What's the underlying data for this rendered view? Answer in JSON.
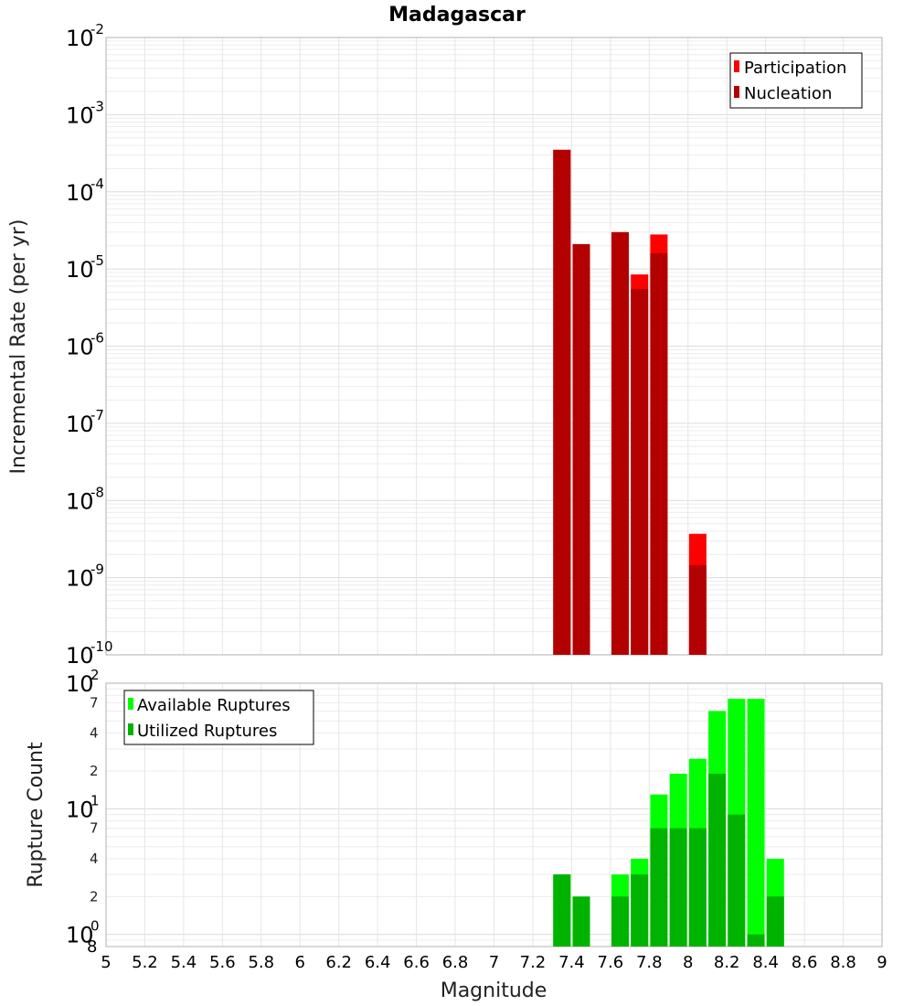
{
  "chart_data": [
    {
      "type": "bar",
      "title": "Madagascar",
      "xlabel": "",
      "ylabel": "Incremental Rate (per yr)",
      "xlim": [
        5,
        9
      ],
      "ylim": [
        1e-10,
        0.01
      ],
      "yscale": "log",
      "grid": true,
      "legend_position": "top-right",
      "y_ticks": [
        {
          "base": "10",
          "exp": "-10",
          "value": 1e-10
        },
        {
          "base": "10",
          "exp": "-9",
          "value": 1e-09
        },
        {
          "base": "10",
          "exp": "-8",
          "value": 1e-08
        },
        {
          "base": "10",
          "exp": "-7",
          "value": 1e-07
        },
        {
          "base": "10",
          "exp": "-6",
          "value": 1e-06
        },
        {
          "base": "10",
          "exp": "-5",
          "value": 1e-05
        },
        {
          "base": "10",
          "exp": "-4",
          "value": 0.0001
        },
        {
          "base": "10",
          "exp": "-3",
          "value": 0.001
        },
        {
          "base": "10",
          "exp": "-2",
          "value": 0.01
        }
      ],
      "series": [
        {
          "name": "Participation",
          "color": "#ff0000",
          "x": [
            7.35,
            7.45,
            7.65,
            7.75,
            7.85,
            8.05
          ],
          "values": [
            0.00035,
            2.1e-05,
            3e-05,
            8.5e-06,
            2.8e-05,
            3.7e-09
          ]
        },
        {
          "name": "Nucleation",
          "color": "#b30000",
          "x": [
            7.35,
            7.45,
            7.65,
            7.75,
            7.85,
            8.05
          ],
          "values": [
            0.00035,
            2.1e-05,
            3e-05,
            5.5e-06,
            1.6e-05,
            1.45e-09
          ]
        }
      ]
    },
    {
      "type": "bar",
      "title": "",
      "xlabel": "Magnitude",
      "ylabel": "Rupture Count",
      "xlim": [
        5,
        9
      ],
      "ylim": [
        0.8,
        100
      ],
      "yscale": "log",
      "grid": true,
      "legend_position": "top-left",
      "x_ticks": [
        "5",
        "5.2",
        "5.4",
        "5.6",
        "5.8",
        "6",
        "6.2",
        "6.4",
        "6.6",
        "6.8",
        "7",
        "7.2",
        "7.4",
        "7.6",
        "7.8",
        "8",
        "8.2",
        "8.4",
        "8.6",
        "8.8",
        "9"
      ],
      "y_ticks": [
        {
          "base": "10",
          "exp": "0",
          "value": 1
        },
        {
          "base": "10",
          "exp": "1",
          "value": 10
        },
        {
          "base": "10",
          "exp": "2",
          "value": 100
        }
      ],
      "y_minor_ticks": [
        {
          "label": "8",
          "value": 0.8
        },
        {
          "label": "2",
          "value": 2
        },
        {
          "label": "4",
          "value": 4
        },
        {
          "label": "7",
          "value": 7
        },
        {
          "label": "2",
          "value": 20
        },
        {
          "label": "4",
          "value": 40
        },
        {
          "label": "7",
          "value": 70
        }
      ],
      "series": [
        {
          "name": "Available Ruptures",
          "color": "#00ff00",
          "x": [
            7.35,
            7.45,
            7.65,
            7.75,
            7.85,
            7.95,
            8.05,
            8.15,
            8.25,
            8.35,
            8.45
          ],
          "values": [
            3,
            2,
            3,
            4,
            13,
            19,
            25,
            60,
            75,
            75,
            4
          ]
        },
        {
          "name": "Utilized Ruptures",
          "color": "#00b300",
          "x": [
            7.35,
            7.45,
            7.65,
            7.75,
            7.85,
            7.95,
            8.05,
            8.15,
            8.25,
            8.35,
            8.45
          ],
          "values": [
            3,
            2,
            2,
            3,
            7,
            7,
            7,
            19,
            9,
            1,
            2
          ]
        }
      ]
    }
  ]
}
